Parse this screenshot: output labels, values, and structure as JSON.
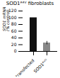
{
  "chart_data": {
    "type": "bar",
    "title": "SOD1ᴬ⁴ⱽ fibroblasts",
    "categories": [
      "Untransfected",
      "SOD1ᴬˢᴼ"
    ],
    "values": [
      100,
      25
    ],
    "error_bars": [
      0,
      5
    ],
    "colors": [
      "#111111",
      "#888888"
    ],
    "ylabel": "SOD1 mRNA\n(% control)",
    "ylim": [
      0,
      120
    ],
    "yticks": [
      0,
      20,
      40,
      60,
      80,
      100,
      120
    ]
  }
}
